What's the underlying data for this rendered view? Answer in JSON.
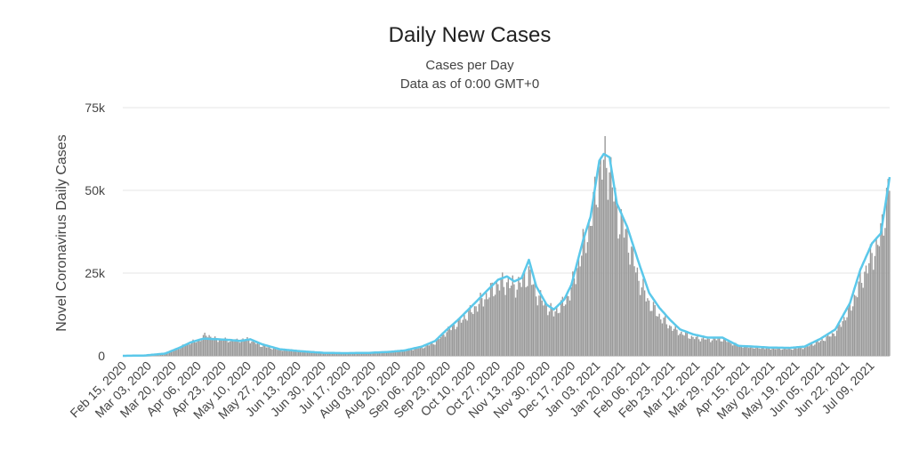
{
  "chart_data": {
    "type": "bar",
    "title": "Daily New Cases",
    "subtitle_line1": "Cases per Day",
    "subtitle_line2": "Data as of 0:00 GMT+0",
    "ylabel": "Novel Coronavirus Daily Cases",
    "ylim": [
      0,
      75000
    ],
    "y_ticks": [
      "0",
      "25k",
      "50k",
      "75k"
    ],
    "y_tick_values": [
      0,
      25000,
      50000,
      75000
    ],
    "grid": true,
    "x_start": "2020-02-15",
    "x_end": "2021-07-22",
    "x_tick_labels": [
      "Feb 15, 2020",
      "Mar 03, 2020",
      "Mar 20, 2020",
      "Apr 06, 2020",
      "Apr 23, 2020",
      "May 10, 2020",
      "May 27, 2020",
      "Jun 13, 2020",
      "Jun 30, 2020",
      "Jul 17, 2020",
      "Aug 03, 2020",
      "Aug 20, 2020",
      "Sep 06, 2020",
      "Sep 23, 2020",
      "Oct 10, 2020",
      "Oct 27, 2020",
      "Nov 13, 2020",
      "Nov 30, 2020",
      "Dec 17, 2020",
      "Jan 03, 2021",
      "Jan 20, 2021",
      "Feb 06, 2021",
      "Feb 23, 2021",
      "Mar 12, 2021",
      "Mar 29, 2021",
      "Apr 15, 2021",
      "May 02, 2021",
      "May 19, 2021",
      "Jun 05, 2021",
      "Jun 22, 2021",
      "Jul 09, 2021"
    ],
    "series": [
      {
        "type": "bar",
        "color": "#999999",
        "points": [
          [
            "2020-02-15",
            0
          ],
          [
            "2020-03-01",
            100
          ],
          [
            "2020-03-15",
            800
          ],
          [
            "2020-03-25",
            2500
          ],
          [
            "2020-04-01",
            4000
          ],
          [
            "2020-04-08",
            4800
          ],
          [
            "2020-04-12",
            6500
          ],
          [
            "2020-04-18",
            5000
          ],
          [
            "2020-04-25",
            4800
          ],
          [
            "2020-05-03",
            4600
          ],
          [
            "2020-05-10",
            5000
          ],
          [
            "2020-05-20",
            3000
          ],
          [
            "2020-06-01",
            1800
          ],
          [
            "2020-06-15",
            1300
          ],
          [
            "2020-07-01",
            800
          ],
          [
            "2020-07-15",
            700
          ],
          [
            "2020-08-01",
            900
          ],
          [
            "2020-08-15",
            1200
          ],
          [
            "2020-08-25",
            1500
          ],
          [
            "2020-09-06",
            2500
          ],
          [
            "2020-09-15",
            4000
          ],
          [
            "2020-09-22",
            7000
          ],
          [
            "2020-10-01",
            10000
          ],
          [
            "2020-10-10",
            13500
          ],
          [
            "2020-10-20",
            18000
          ],
          [
            "2020-10-28",
            21500
          ],
          [
            "2020-11-03",
            22000
          ],
          [
            "2020-11-08",
            21000
          ],
          [
            "2020-11-13",
            22000
          ],
          [
            "2020-11-18",
            25000
          ],
          [
            "2020-11-23",
            19000
          ],
          [
            "2020-11-30",
            15000
          ],
          [
            "2020-12-05",
            13000
          ],
          [
            "2020-12-12",
            16000
          ],
          [
            "2020-12-17",
            20000
          ],
          [
            "2020-12-25",
            33000
          ],
          [
            "2020-12-30",
            40000
          ],
          [
            "2021-01-05",
            55000
          ],
          [
            "2021-01-08",
            58000
          ],
          [
            "2021-01-12",
            57000
          ],
          [
            "2021-01-17",
            43000
          ],
          [
            "2021-01-24",
            36000
          ],
          [
            "2021-02-01",
            23000
          ],
          [
            "2021-02-08",
            16000
          ],
          [
            "2021-02-15",
            12000
          ],
          [
            "2021-02-22",
            9000
          ],
          [
            "2021-03-01",
            7000
          ],
          [
            "2021-03-10",
            5500
          ],
          [
            "2021-03-20",
            5000
          ],
          [
            "2021-03-30",
            5000
          ],
          [
            "2021-04-10",
            3000
          ],
          [
            "2021-04-20",
            2500
          ],
          [
            "2021-05-01",
            2200
          ],
          [
            "2021-05-15",
            2100
          ],
          [
            "2021-05-25",
            2500
          ],
          [
            "2021-06-05",
            4500
          ],
          [
            "2021-06-15",
            7000
          ],
          [
            "2021-06-25",
            14000
          ],
          [
            "2021-07-02",
            22000
          ],
          [
            "2021-07-10",
            30000
          ],
          [
            "2021-07-16",
            36000
          ],
          [
            "2021-07-22",
            53000
          ]
        ]
      },
      {
        "type": "line",
        "color": "#5bc8ea",
        "points": [
          [
            "2020-02-15",
            0
          ],
          [
            "2020-03-01",
            100
          ],
          [
            "2020-03-15",
            700
          ],
          [
            "2020-03-25",
            2500
          ],
          [
            "2020-04-01",
            4000
          ],
          [
            "2020-04-10",
            5200
          ],
          [
            "2020-04-20",
            5000
          ],
          [
            "2020-04-28",
            4800
          ],
          [
            "2020-05-05",
            4500
          ],
          [
            "2020-05-12",
            5000
          ],
          [
            "2020-05-20",
            3500
          ],
          [
            "2020-06-01",
            2000
          ],
          [
            "2020-06-15",
            1400
          ],
          [
            "2020-07-01",
            900
          ],
          [
            "2020-07-15",
            800
          ],
          [
            "2020-08-01",
            900
          ],
          [
            "2020-08-15",
            1200
          ],
          [
            "2020-08-25",
            1600
          ],
          [
            "2020-09-06",
            2800
          ],
          [
            "2020-09-15",
            4500
          ],
          [
            "2020-09-22",
            7500
          ],
          [
            "2020-10-01",
            11000
          ],
          [
            "2020-10-10",
            15000
          ],
          [
            "2020-10-20",
            19500
          ],
          [
            "2020-10-28",
            23000
          ],
          [
            "2020-11-03",
            24000
          ],
          [
            "2020-11-08",
            22500
          ],
          [
            "2020-11-13",
            23500
          ],
          [
            "2020-11-18",
            29000
          ],
          [
            "2020-11-23",
            21000
          ],
          [
            "2020-11-30",
            15500
          ],
          [
            "2020-12-05",
            14000
          ],
          [
            "2020-12-12",
            17000
          ],
          [
            "2020-12-17",
            21500
          ],
          [
            "2020-12-25",
            35000
          ],
          [
            "2020-12-30",
            42000
          ],
          [
            "2021-01-05",
            59000
          ],
          [
            "2021-01-08",
            61000
          ],
          [
            "2021-01-12",
            60000
          ],
          [
            "2021-01-17",
            46000
          ],
          [
            "2021-01-24",
            39000
          ],
          [
            "2021-02-01",
            28000
          ],
          [
            "2021-02-08",
            19000
          ],
          [
            "2021-02-15",
            14500
          ],
          [
            "2021-02-22",
            11000
          ],
          [
            "2021-03-01",
            8000
          ],
          [
            "2021-03-10",
            6500
          ],
          [
            "2021-03-20",
            5500
          ],
          [
            "2021-03-30",
            5500
          ],
          [
            "2021-04-10",
            3000
          ],
          [
            "2021-04-20",
            2800
          ],
          [
            "2021-05-01",
            2500
          ],
          [
            "2021-05-15",
            2400
          ],
          [
            "2021-05-25",
            2800
          ],
          [
            "2021-06-05",
            5200
          ],
          [
            "2021-06-15",
            8000
          ],
          [
            "2021-06-25",
            16000
          ],
          [
            "2021-07-02",
            26000
          ],
          [
            "2021-07-10",
            34000
          ],
          [
            "2021-07-16",
            37000
          ],
          [
            "2021-07-22",
            54000
          ]
        ]
      }
    ]
  }
}
